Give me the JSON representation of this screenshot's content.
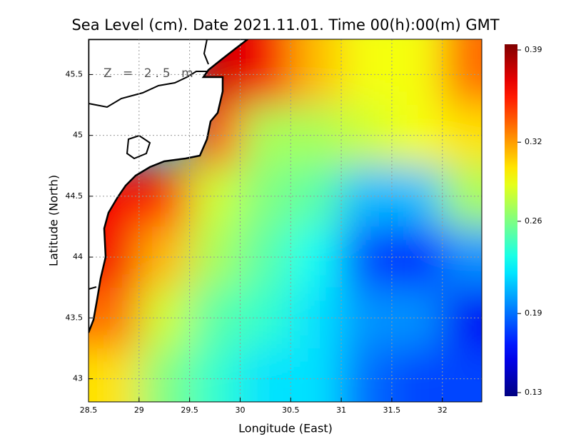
{
  "chart_data": {
    "type": "heatmap",
    "title": "Sea Level (cm). Date 2021.11.01. Time 00(h):00(m) GMT",
    "annotation": "Z = 2.5 m",
    "x_label": "Longitude (East)",
    "y_label": "Latitude (North)",
    "x": [
      28.75,
      29.25,
      29.75,
      30.25,
      30.75,
      31.25,
      31.75,
      32.25
    ],
    "y": [
      45.5,
      45.0,
      44.5,
      44.0,
      43.5,
      43.0
    ],
    "z": [
      [
        null,
        null,
        0.37,
        0.36,
        0.31,
        0.29,
        0.29,
        0.33
      ],
      [
        null,
        null,
        0.34,
        0.27,
        0.27,
        0.28,
        0.29,
        0.3
      ],
      [
        0.36,
        0.35,
        0.28,
        0.26,
        0.25,
        0.21,
        0.21,
        0.27
      ],
      [
        0.36,
        0.31,
        0.27,
        0.25,
        0.23,
        0.18,
        0.17,
        0.2
      ],
      [
        0.33,
        0.28,
        0.25,
        0.24,
        0.22,
        0.2,
        0.2,
        0.16
      ],
      [
        0.3,
        0.26,
        0.24,
        0.22,
        0.22,
        0.19,
        0.18,
        0.18
      ]
    ],
    "xlim": [
      28.5,
      32.39
    ],
    "ylim": [
      42.81,
      45.79
    ],
    "xticks": [
      28.5,
      29,
      29.5,
      30,
      30.5,
      31,
      31.5,
      32
    ],
    "yticks": [
      43,
      43.5,
      44,
      44.5,
      45,
      45.5
    ],
    "clim": [
      0.13,
      0.39
    ],
    "cticks": [
      0.13,
      0.19,
      0.26,
      0.32,
      0.39
    ],
    "colormap": "jet",
    "grid": true
  }
}
